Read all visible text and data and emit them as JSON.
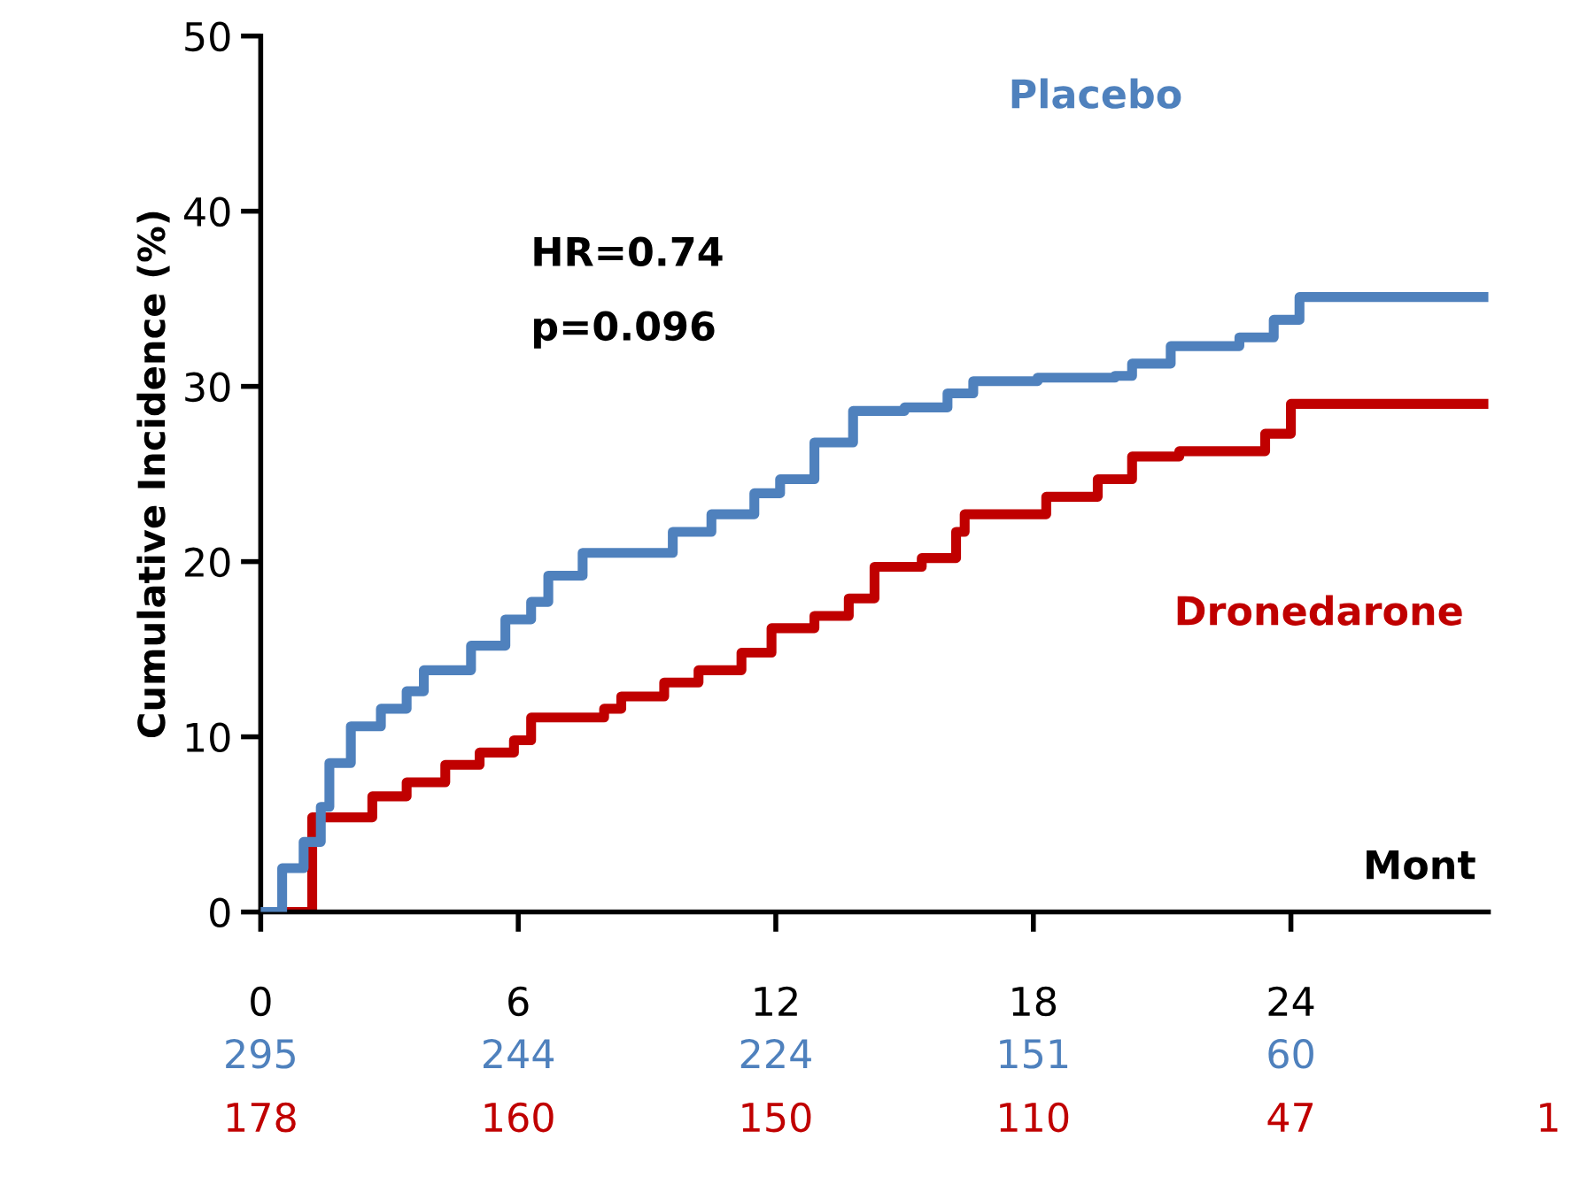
{
  "chart_data": {
    "type": "step",
    "xlabel": "Mont",
    "ylabel": "Cumulative Incidence (%)",
    "xlim": [
      0,
      28.6
    ],
    "ylim": [
      0,
      50
    ],
    "xticks": [
      0,
      6,
      12,
      18,
      24
    ],
    "yticks": [
      0,
      10,
      20,
      30,
      40,
      50
    ],
    "grid": false,
    "annotations": [
      "HR=0.74",
      "p=0.096",
      "295",
      "244",
      "224",
      "151",
      "60",
      "178",
      "160",
      "150",
      "110",
      "47",
      "1"
    ],
    "series": [
      {
        "name": "Placebo",
        "color": "#4f81bd",
        "x": [
          0,
          0.5,
          1,
          1.4,
          1.6,
          2.1,
          2.8,
          3.4,
          3.8,
          4.5,
          4.9,
          5.7,
          6.3,
          6.7,
          7.5,
          8.6,
          9.6,
          10.5,
          11.5,
          12.1,
          12.9,
          13.8,
          15,
          16,
          16.6,
          18.1,
          19.9,
          20.3,
          21.2,
          22.8,
          23.6,
          24.2,
          28.6
        ],
        "values": [
          0,
          2.5,
          4,
          6,
          8.5,
          10.6,
          11.6,
          12.6,
          13.8,
          13.8,
          15.2,
          16.7,
          17.7,
          19.2,
          20.5,
          20.5,
          21.7,
          22.7,
          23.9,
          24.7,
          26.8,
          28.6,
          28.8,
          29.6,
          30.3,
          30.5,
          30.6,
          31.3,
          32.3,
          32.8,
          33.8,
          35.1,
          35.1
        ]
      },
      {
        "name": "Dronedarone",
        "color": "#c00000",
        "x": [
          0,
          1.2,
          2.2,
          2.6,
          3.4,
          4.3,
          5.1,
          5.9,
          6.3,
          8,
          8.4,
          9.4,
          10.2,
          11.2,
          11.9,
          12.9,
          13.7,
          14.3,
          15.4,
          16.2,
          16.4,
          17.8,
          18.3,
          19.5,
          20.3,
          21.4,
          22.8,
          23.4,
          24,
          28.6
        ],
        "values": [
          0,
          5.4,
          5.4,
          6.6,
          7.4,
          8.4,
          9.1,
          9.8,
          11.1,
          11.6,
          12.3,
          13.1,
          13.8,
          14.8,
          16.2,
          16.9,
          17.9,
          19.7,
          20.2,
          21.7,
          22.7,
          22.7,
          23.7,
          24.7,
          26,
          26.3,
          26.3,
          27.3,
          29,
          29
        ]
      }
    ]
  }
}
